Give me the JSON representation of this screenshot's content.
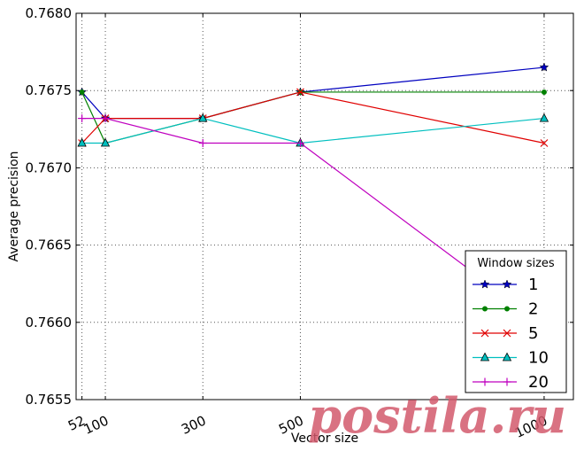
{
  "chart_data": {
    "type": "line",
    "xlabel": "Vector size",
    "ylabel": "Average precision",
    "x": [
      52,
      100,
      300,
      500,
      1000
    ],
    "xticks": [
      "52",
      "100",
      "300",
      "500",
      "1000"
    ],
    "xlim": [
      40,
      1060
    ],
    "ylim": [
      0.7655,
      0.768
    ],
    "yticks": [
      "0.7655",
      "0.7660",
      "0.7665",
      "0.7670",
      "0.7675",
      "0.7680"
    ],
    "grid": true,
    "legend": {
      "title": "Window sizes",
      "placement": "lower-right"
    },
    "series": [
      {
        "name": "1",
        "color": "#0000bf",
        "marker": "star",
        "values": [
          0.76749,
          0.76732,
          0.76732,
          0.76749,
          0.76765
        ]
      },
      {
        "name": "2",
        "color": "#008000",
        "marker": "dot",
        "values": [
          0.76749,
          0.76716,
          0.76732,
          0.76749,
          0.76749
        ]
      },
      {
        "name": "5",
        "color": "#e00000",
        "marker": "x",
        "values": [
          0.76716,
          0.76732,
          0.76732,
          0.76749,
          0.76716
        ]
      },
      {
        "name": "10",
        "color": "#00bfbf",
        "marker": "triangle",
        "values": [
          0.76716,
          0.76716,
          0.76732,
          0.76716,
          0.76732
        ]
      },
      {
        "name": "20",
        "color": "#bf00bf",
        "marker": "plus",
        "values": [
          0.76732,
          0.76732,
          0.76716,
          0.76716,
          0.76598
        ]
      }
    ]
  },
  "watermark": "postila.ru"
}
